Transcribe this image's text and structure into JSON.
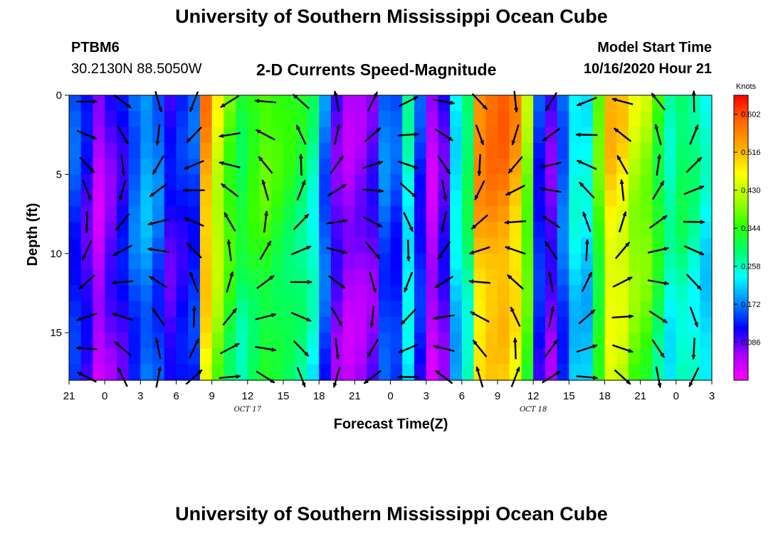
{
  "page": {
    "title_top": "University of Southern Mississippi Ocean Cube",
    "title_bottom": "University of Southern Mississippi Ocean Cube",
    "station": "PTBM6",
    "coords": "30.2130N 88.5050W",
    "plot_title": "2-D Currents Speed-Magnitude",
    "model_start_label": "Model Start Time",
    "model_start_value": "10/16/2020 Hour 21"
  },
  "chart_data": {
    "type": "heatmap",
    "title": "2-D Currents Speed-Magnitude",
    "xlabel": "Forecast Time(Z)",
    "ylabel": "Depth (ft)",
    "x_range_hours": [
      0,
      54
    ],
    "x_tick_labels": [
      "21",
      "0",
      "3",
      "6",
      "9",
      "12",
      "15",
      "18",
      "21",
      "0",
      "3",
      "6",
      "9",
      "12",
      "15",
      "18",
      "21",
      "0",
      "3"
    ],
    "x_tick_hours": [
      0,
      3,
      6,
      9,
      12,
      15,
      18,
      21,
      24,
      27,
      30,
      33,
      36,
      39,
      42,
      45,
      48,
      51,
      54
    ],
    "date_labels": [
      {
        "text": "OCT 17",
        "hour": 15
      },
      {
        "text": "OCT 18",
        "hour": 39
      }
    ],
    "y_range_ft": [
      0,
      18
    ],
    "y_tick_labels": [
      "0",
      "5",
      "10",
      "15"
    ],
    "y_tick_values": [
      0,
      5,
      10,
      15
    ],
    "colorbar": {
      "label": "Knots",
      "min": 0,
      "max": 0.645,
      "ticks": [
        "0.602",
        "0.516",
        "0.430",
        "0.344",
        "0.258",
        "0.172",
        "0.086"
      ],
      "tick_values": [
        0.602,
        0.516,
        0.43,
        0.344,
        0.258,
        0.172,
        0.086
      ],
      "colors": [
        "#ff00ff",
        "#aa00ff",
        "#0000ff",
        "#0088ff",
        "#00ffff",
        "#00ff66",
        "#33ff00",
        "#aaff00",
        "#ffff00",
        "#ffaa00",
        "#ff6600",
        "#ff0000"
      ]
    },
    "column_speeds_knots": [
      0.15,
      0.11,
      0.05,
      0.09,
      0.12,
      0.17,
      0.2,
      0.17,
      0.11,
      0.13,
      0.15,
      0.56,
      0.46,
      0.38,
      0.33,
      0.36,
      0.38,
      0.36,
      0.34,
      0.32,
      0.28,
      0.17,
      0.09,
      0.06,
      0.07,
      0.09,
      0.17,
      0.15,
      0.26,
      0.14,
      0.05,
      0.1,
      0.24,
      0.31,
      0.57,
      0.59,
      0.59,
      0.55,
      0.41,
      0.14,
      0.09,
      0.17,
      0.25,
      0.24,
      0.38,
      0.52,
      0.5,
      0.44,
      0.42,
      0.35,
      0.28,
      0.31,
      0.29,
      0.25
    ],
    "vector_rows_ft": [
      0.4,
      2.5,
      4.4,
      6.0,
      8.0,
      9.8,
      11.8,
      14.0,
      16.0,
      17.8
    ],
    "vector_hours": [
      1.5,
      4.5,
      7.5,
      10.5,
      13.5,
      16.5,
      19.5,
      22.5,
      25.5,
      28.5,
      31.5,
      34.5,
      37.5,
      40.5,
      43.5,
      46.5,
      49.5,
      52.5
    ]
  }
}
